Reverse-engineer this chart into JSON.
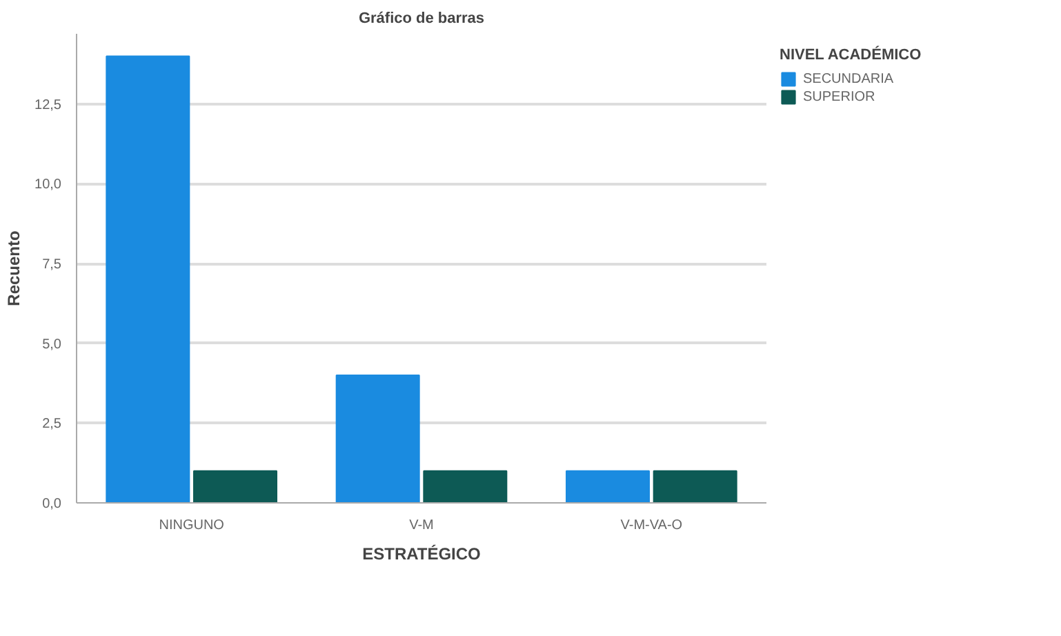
{
  "chart_data": {
    "type": "bar",
    "title": "Gráfico de barras",
    "xlabel": "ESTRATÉGICO",
    "ylabel": "Recuento",
    "legend_title": "NIVEL ACADÉMICO",
    "categories": [
      "NINGUNO",
      "V-M",
      "V-M-VA-O"
    ],
    "series": [
      {
        "name": "SECUNDARIA",
        "color": "#1a8be0",
        "values": [
          14,
          4,
          1
        ]
      },
      {
        "name": "SUPERIOR",
        "color": "#0d5a55",
        "values": [
          1,
          1,
          1
        ]
      }
    ],
    "ylim": [
      0,
      14.7
    ],
    "yticks": [
      {
        "value": 0,
        "label": "0,0"
      },
      {
        "value": 2.5,
        "label": "2,5"
      },
      {
        "value": 5,
        "label": "5,0"
      },
      {
        "value": 7.5,
        "label": "7,5"
      },
      {
        "value": 10,
        "label": "10,0"
      },
      {
        "value": 12.5,
        "label": "12,5"
      }
    ],
    "grid": "y",
    "legend": "top right"
  }
}
